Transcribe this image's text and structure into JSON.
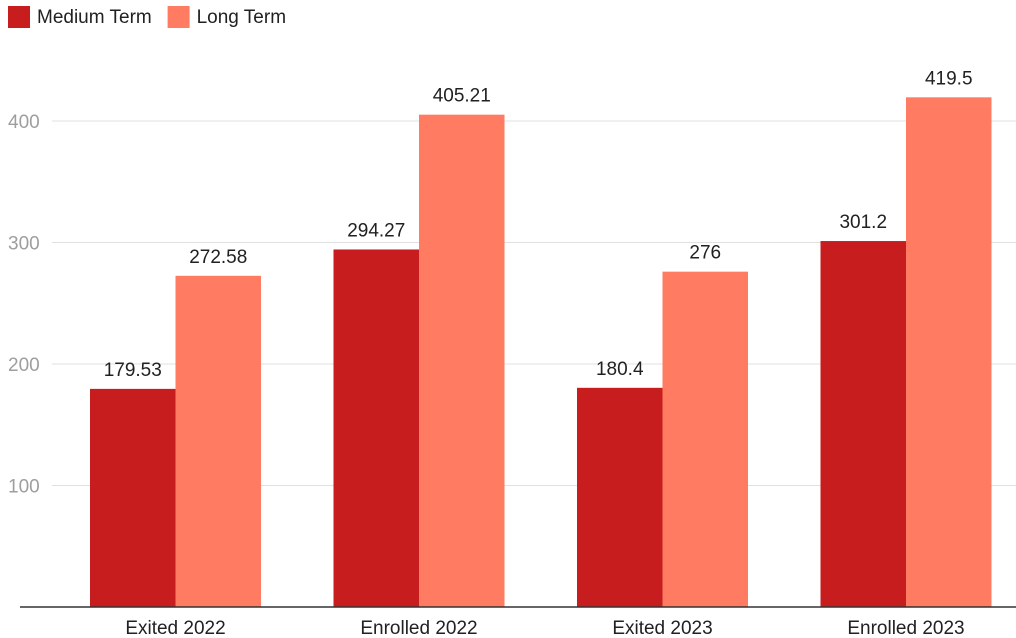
{
  "chart_data": {
    "type": "bar",
    "categories": [
      "Exited 2022",
      "Enrolled 2022",
      "Exited 2023",
      "Enrolled 2023"
    ],
    "series": [
      {
        "name": "Medium Term",
        "color": "#c81d1f",
        "values": [
          179.53,
          294.27,
          180.4,
          301.2
        ],
        "labels": [
          "179.53",
          "294.27",
          "180.4",
          "301.2"
        ]
      },
      {
        "name": "Long Term",
        "color": "#ff7b61",
        "values": [
          272.58,
          405.21,
          276,
          419.5
        ],
        "labels": [
          "272.58",
          "405.21",
          "276",
          "419.5"
        ]
      }
    ],
    "yticks": [
      100,
      200,
      300,
      400
    ],
    "ylim": [
      0,
      420
    ],
    "grid": true,
    "legend": "top-left",
    "title": "",
    "xlabel": "",
    "ylabel": ""
  }
}
